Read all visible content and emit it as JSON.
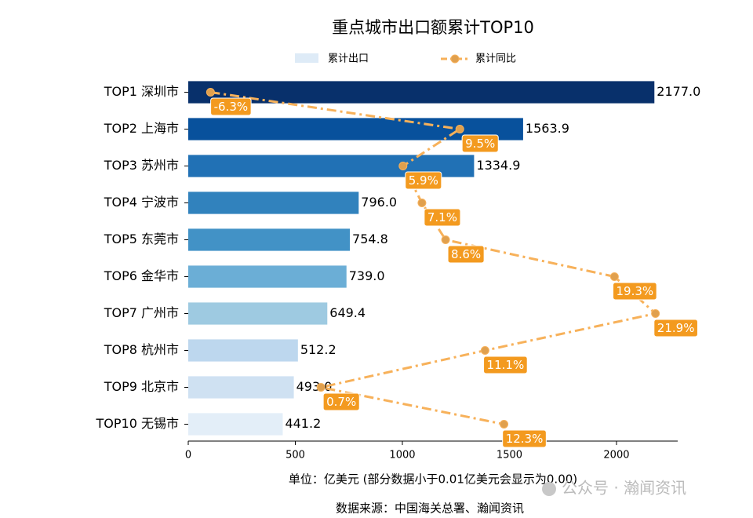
{
  "chart_data": {
    "type": "bar",
    "orientation": "horizontal",
    "title": "重点城市出口额累计TOP10",
    "categories": [
      "TOP1 深圳市",
      "TOP2 上海市",
      "TOP3 苏州市",
      "TOP4 宁波市",
      "TOP5 东莞市",
      "TOP6 金华市",
      "TOP7 广州市",
      "TOP8 杭州市",
      "TOP9 北京市",
      "TOP10 无锡市"
    ],
    "series": [
      {
        "name": "累计出口",
        "type": "bar",
        "color": "#deebf7",
        "colors": [
          "#08306b",
          "#08519c",
          "#2171b5",
          "#3182bd",
          "#4292c6",
          "#6baed6",
          "#9ecae1",
          "#bdd7ee",
          "#cfe1f2",
          "#e3eef8"
        ],
        "values": [
          2177.0,
          1563.9,
          1334.9,
          796.0,
          754.8,
          739.0,
          649.4,
          512.2,
          493.0,
          441.2
        ],
        "value_labels": [
          "2177.0",
          "1563.9",
          "1334.9",
          "796.0",
          "754.8",
          "739.0",
          "649.4",
          "512.2",
          "493.0",
          "441.2"
        ]
      },
      {
        "name": "累计同比",
        "type": "line",
        "axis": "x2",
        "color": "#f7b15a",
        "label_color": "#f39a1f",
        "values": [
          -6.3,
          9.5,
          5.9,
          7.1,
          8.6,
          19.3,
          21.9,
          11.1,
          0.7,
          12.3
        ],
        "value_labels": [
          "-6.3%",
          "9.5%",
          "5.9%",
          "7.1%",
          "8.6%",
          "19.3%",
          "21.9%",
          "11.1%",
          "0.7%",
          "12.3%"
        ]
      }
    ],
    "xlim": [
      0,
      2285.85
    ],
    "xticks": [
      0,
      500,
      1000,
      1500,
      2000
    ],
    "x2lim": [
      -7.71,
      23.31
    ],
    "xlabel": "单位：亿美元  (部分数据小于0.01亿美元会显示为0.00)",
    "source": "数据来源：中国海关总署、瀚闻资讯",
    "watermark": "公众号 · 瀚闻资讯"
  }
}
